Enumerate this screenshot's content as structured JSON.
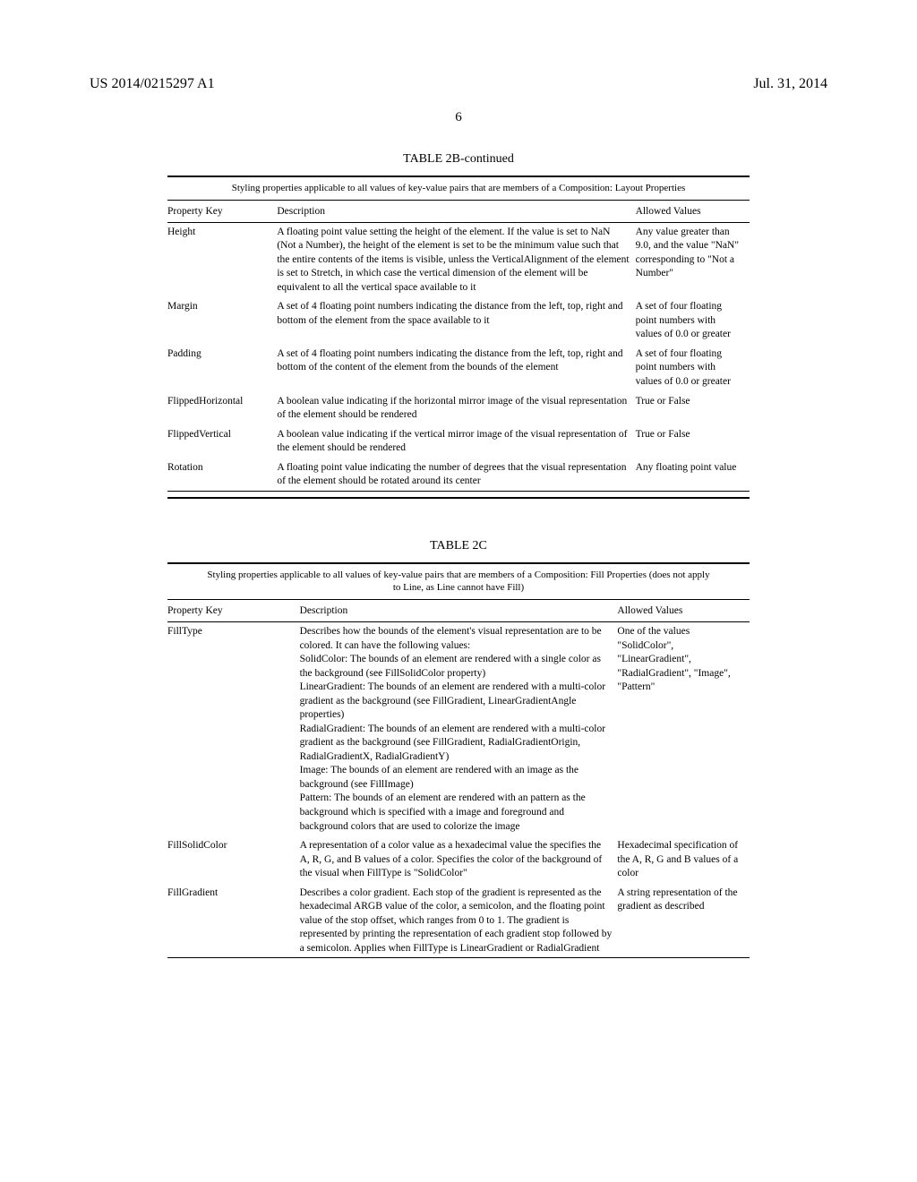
{
  "header": {
    "left": "US 2014/0215297 A1",
    "right": "Jul. 31, 2014"
  },
  "page_number": "6",
  "table_2b": {
    "title": "TABLE 2B-continued",
    "caption": "Styling properties applicable to all values of key-value pairs that are members of a Composition: Layout Properties",
    "columns": [
      "Property Key",
      "Description",
      "Allowed Values"
    ],
    "rows": [
      {
        "key": "Height",
        "desc": "A floating point value setting the height of the element. If the value is set to NaN (Not a Number), the height of the element is set to be the minimum value such that the entire contents of the items is visible, unless the VerticalAlignment of the element is set to Stretch, in which case the vertical dimension of the element will be equivalent to all the vertical space available to it",
        "val": "Any value greater than 9.0, and the value \"NaN\" corresponding to \"Not a Number\""
      },
      {
        "key": "Margin",
        "desc": "A set of 4 floating point numbers indicating the distance from the left, top, right and bottom of the element from the space available to it",
        "val": "A set of four floating point numbers with values of 0.0 or greater"
      },
      {
        "key": "Padding",
        "desc": "A set of 4 floating point numbers indicating the distance from the left, top, right and bottom of the content of the element from the bounds of the element",
        "val": "A set of four floating point numbers with values of 0.0 or greater"
      },
      {
        "key": "FlippedHorizontal",
        "desc": "A boolean value indicating if the horizontal mirror image of the visual representation of the element should be rendered",
        "val": "True or False"
      },
      {
        "key": "FlippedVertical",
        "desc": "A boolean value indicating if the vertical mirror image of the visual representation of the element should be rendered",
        "val": "True or False"
      },
      {
        "key": "Rotation",
        "desc": "A floating point value indicating the number of degrees that the visual representation of the element should be rotated around its center",
        "val": "Any floating point value"
      }
    ]
  },
  "table_2c": {
    "title": "TABLE 2C",
    "caption": "Styling properties applicable to all values of key-value pairs that are members of a Composition: Fill Properties (does not apply to Line, as Line cannot have Fill)",
    "columns": [
      "Property Key",
      "Description",
      "Allowed Values"
    ],
    "rows": [
      {
        "key": "FillType",
        "desc": "Describes how the bounds of the element's visual representation are to be colored. It can have the following values:\nSolidColor: The bounds of an element are rendered with a single color as the background (see FillSolidColor property)\nLinearGradient: The bounds of an element are rendered with a multi-color gradient as the background (see FillGradient, LinearGradientAngle properties)\nRadialGradient: The bounds of an element are rendered with a multi-color gradient as the background (see FillGradient, RadialGradientOrigin, RadialGradientX, RadialGradientY)\nImage: The bounds of an element are rendered with an image as the background (see FillImage)\nPattern: The bounds of an element are rendered with an pattern as the background which is specified with a image and foreground and background colors that are used to colorize the image",
        "val": "One of the values \"SolidColor\", \"LinearGradient\", \"RadialGradient\", \"Image\", \"Pattern\""
      },
      {
        "key": "FillSolidColor",
        "desc": "A representation of a color value as a hexadecimal value the specifies the A, R, G, and B values of a color. Specifies the color of the background of the visual when FillType is \"SolidColor\"",
        "val": "Hexadecimal specification of the A, R, G and B values of a color"
      },
      {
        "key": "FillGradient",
        "desc": "Describes a color gradient. Each stop of the gradient is represented as the hexadecimal ARGB value of the color, a semicolon, and the floating point value of the stop offset, which ranges from 0 to 1. The gradient is represented by printing the representation of each gradient stop followed by a semicolon. Applies when FillType is LinearGradient or RadialGradient",
        "val": "A string representation of the gradient as described"
      }
    ]
  }
}
